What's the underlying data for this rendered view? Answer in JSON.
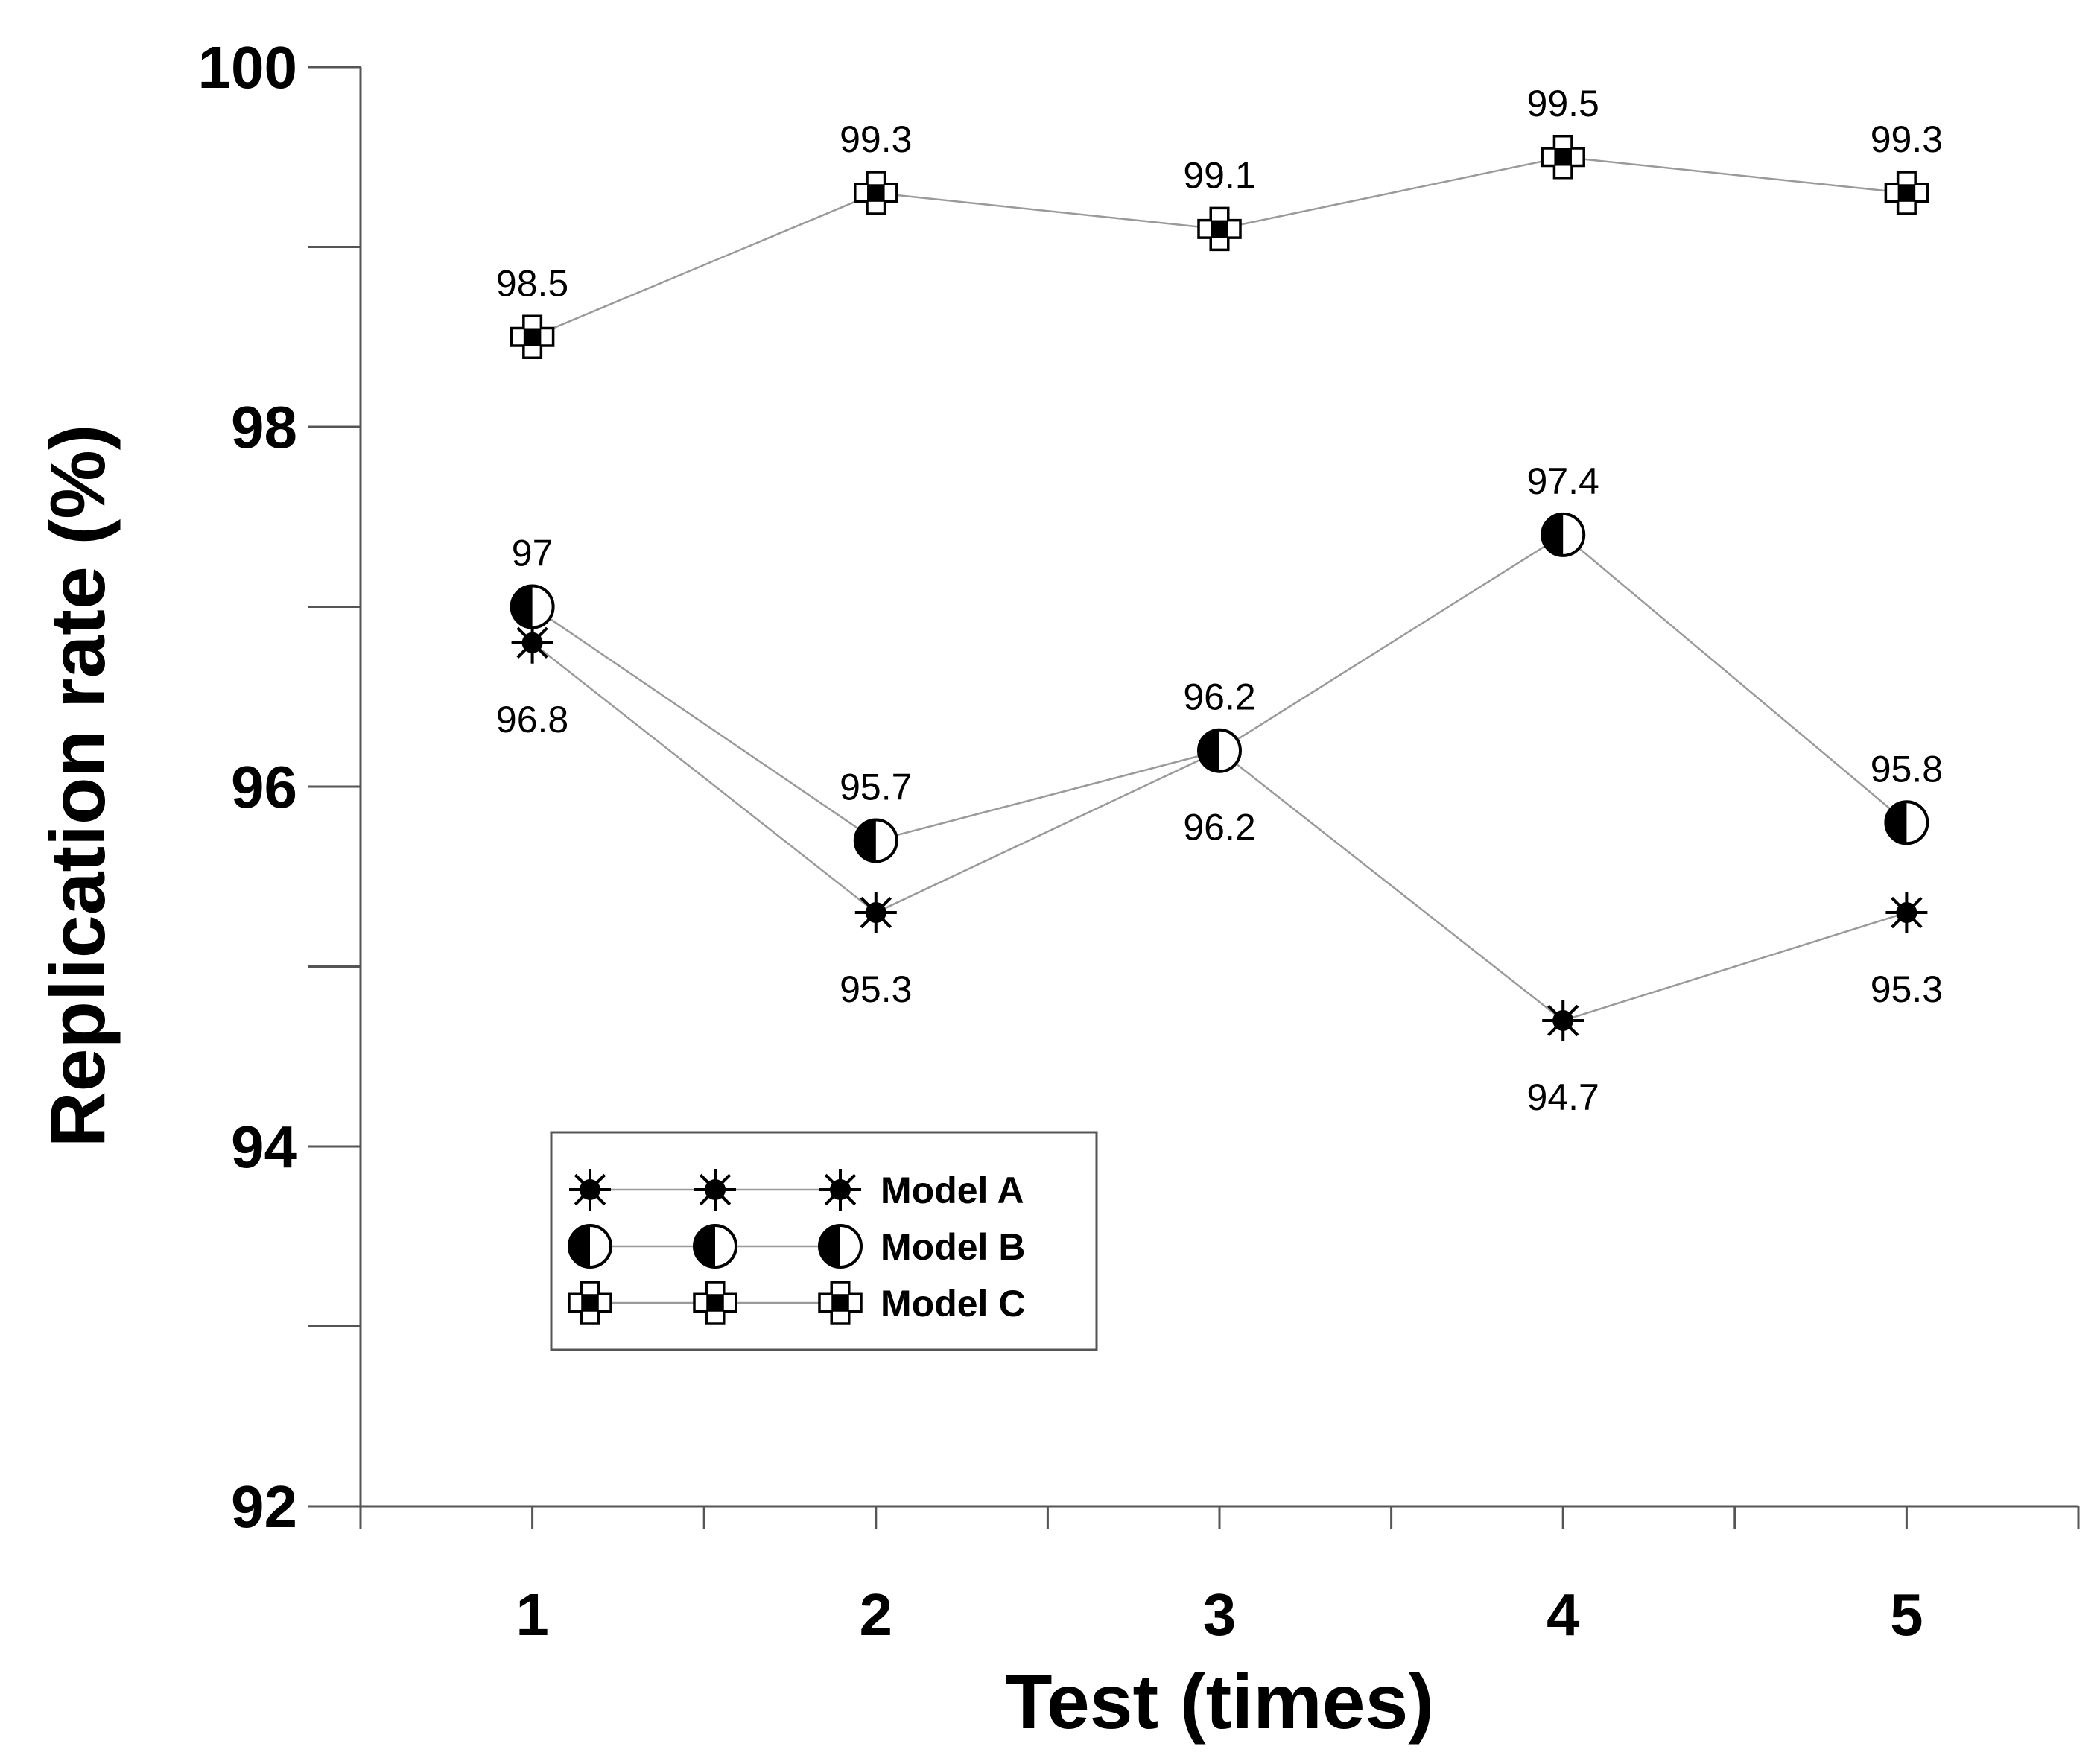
{
  "chart_data": {
    "type": "line",
    "title": "",
    "xlabel": "Test (times)",
    "ylabel": "Replication rate (%)",
    "x": [
      1,
      2,
      3,
      4,
      5
    ],
    "x_tick_labels": [
      "1",
      "2",
      "3",
      "4",
      "5"
    ],
    "xlim": [
      0.5,
      5.5
    ],
    "ylim": [
      92,
      100
    ],
    "y_major_ticks": [
      92,
      94,
      96,
      98,
      100
    ],
    "y_tick_labels": [
      "92",
      "94",
      "96",
      "98",
      "100"
    ],
    "grid": false,
    "legend_position": "lower-left",
    "series": [
      {
        "name": "Model A",
        "marker": "star-asterisk",
        "values": [
          96.8,
          95.3,
          96.2,
          94.7,
          95.3
        ],
        "labels": [
          "96.8",
          "95.3",
          "96.2",
          "94.7",
          "95.3"
        ],
        "label_side": [
          "below",
          "below",
          "below",
          "below",
          "below"
        ]
      },
      {
        "name": "Model B",
        "marker": "half-filled-circle",
        "values": [
          97.0,
          95.7,
          96.2,
          97.4,
          95.8
        ],
        "labels": [
          "97",
          "95.7",
          "96.2",
          "97.4",
          "95.8"
        ],
        "label_side": [
          "above",
          "above",
          "above",
          "above",
          "above"
        ]
      },
      {
        "name": "Model C",
        "marker": "square-cross",
        "values": [
          98.5,
          99.3,
          99.1,
          99.5,
          99.3
        ],
        "labels": [
          "98.5",
          "99.3",
          "99.1",
          "99.5",
          "99.3"
        ],
        "label_side": [
          "above",
          "above",
          "above",
          "above",
          "above"
        ]
      }
    ],
    "colors": {
      "line": "#9a9a9a",
      "axis": "#555555",
      "marker": "#000000",
      "background": "#ffffff"
    }
  }
}
